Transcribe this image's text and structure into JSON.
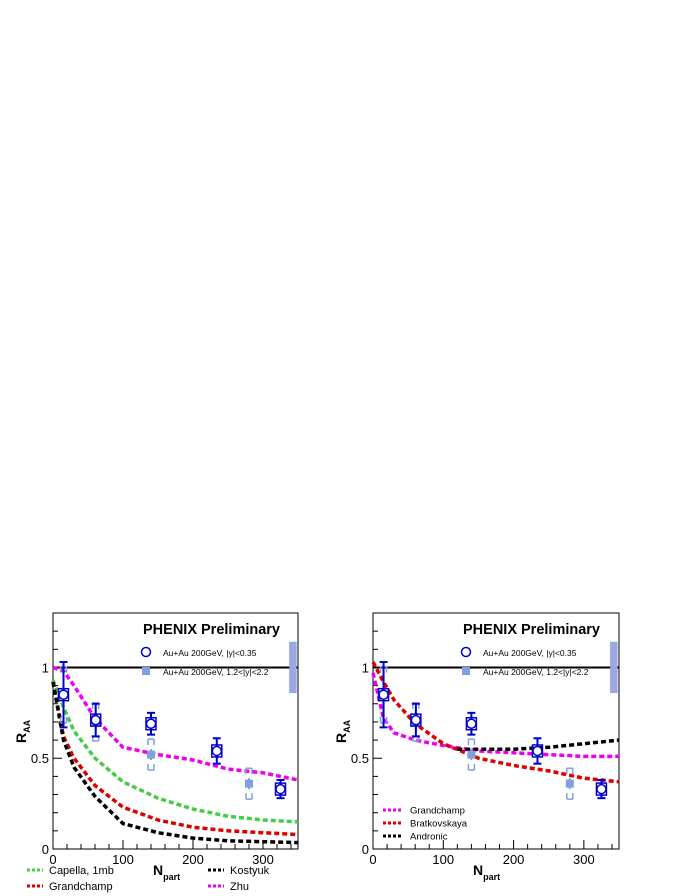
{
  "chart_data": [
    {
      "type": "line",
      "title": "PHENIX Preliminary",
      "xlabel": "N",
      "xlabel_sub": "part",
      "ylabel": "R",
      "ylabel_sub": "AA",
      "xlim": [
        0,
        350
      ],
      "ylim": [
        0,
        1.3
      ],
      "xticks": [
        0,
        100,
        200,
        300
      ],
      "yticks": [
        0,
        0.5,
        1
      ],
      "xtick_labels": [
        "0",
        "100",
        "200",
        "300"
      ],
      "ytick_labels": [
        "0",
        "0.5",
        "1"
      ],
      "reference_line": 1,
      "data_series": [
        {
          "name": "Au+Au 200GeV, |y|<0.35",
          "marker": "open-circle",
          "color": "#0000cc",
          "points": [
            {
              "x": 15,
              "y": 0.85,
              "err": 0.18
            },
            {
              "x": 61,
              "y": 0.71,
              "err": 0.09
            },
            {
              "x": 140,
              "y": 0.69,
              "err": 0.06
            },
            {
              "x": 234,
              "y": 0.54,
              "err": 0.07
            },
            {
              "x": 325,
              "y": 0.33,
              "err": 0.05
            }
          ]
        },
        {
          "name": "Au+Au 200GeV, 1.2<|y|<2.2",
          "marker": "filled-square",
          "color": "#7f9fdf",
          "points": [
            {
              "x": 15,
              "y": 0.85,
              "err": 0.1
            },
            {
              "x": 61,
              "y": 0.7,
              "err": 0.05
            },
            {
              "x": 140,
              "y": 0.52,
              "err": 0.03
            },
            {
              "x": 280,
              "y": 0.36,
              "err": 0.03
            }
          ]
        }
      ],
      "model_curves": [
        {
          "name": "Capella, 1mb",
          "color": "#44cc44",
          "x": [
            0,
            15,
            30,
            60,
            100,
            150,
            200,
            250,
            300,
            350
          ],
          "y": [
            0.93,
            0.78,
            0.65,
            0.5,
            0.37,
            0.28,
            0.22,
            0.18,
            0.16,
            0.15
          ]
        },
        {
          "name": "Grandchamp",
          "color": "#dd0000",
          "x": [
            0,
            15,
            30,
            60,
            100,
            150,
            200,
            250,
            300,
            350
          ],
          "y": [
            0.92,
            0.62,
            0.5,
            0.35,
            0.23,
            0.16,
            0.12,
            0.1,
            0.09,
            0.08
          ]
        },
        {
          "name": "Kostyuk",
          "color": "#000000",
          "x": [
            0,
            15,
            30,
            60,
            100,
            150,
            200,
            250,
            300,
            350
          ],
          "y": [
            0.92,
            0.6,
            0.45,
            0.29,
            0.14,
            0.09,
            0.06,
            0.045,
            0.04,
            0.035
          ]
        },
        {
          "name": "Zhu",
          "color": "#ee00ee",
          "x": [
            0,
            15,
            30,
            60,
            100,
            150,
            200,
            250,
            300,
            350
          ],
          "y": [
            1.0,
            0.98,
            0.9,
            0.72,
            0.56,
            0.52,
            0.49,
            0.44,
            0.42,
            0.38
          ]
        }
      ],
      "sys_band": {
        "x": 342,
        "ylow": 0.86,
        "yhigh": 1.14
      },
      "model_legend": [
        {
          "label": "Capella, 1mb",
          "color": "#44cc44"
        },
        {
          "label": "Grandchamp",
          "color": "#dd0000"
        },
        {
          "label": "Kostyuk",
          "color": "#000000"
        },
        {
          "label": "Zhu",
          "color": "#ee00ee"
        }
      ]
    },
    {
      "type": "line",
      "title": "PHENIX Preliminary",
      "xlabel": "N",
      "xlabel_sub": "part",
      "ylabel": "R",
      "ylabel_sub": "AA",
      "xlim": [
        0,
        350
      ],
      "ylim": [
        0,
        1.3
      ],
      "xticks": [
        0,
        100,
        200,
        300
      ],
      "yticks": [
        0,
        0.5,
        1
      ],
      "xtick_labels": [
        "0",
        "100",
        "200",
        "300"
      ],
      "ytick_labels": [
        "0",
        "0.5",
        "1"
      ],
      "reference_line": 1,
      "data_series": [
        {
          "name": "Au+Au 200GeV, |y|<0.35",
          "marker": "open-circle",
          "color": "#0000cc",
          "points": [
            {
              "x": 15,
              "y": 0.85,
              "err": 0.18
            },
            {
              "x": 61,
              "y": 0.71,
              "err": 0.09
            },
            {
              "x": 140,
              "y": 0.69,
              "err": 0.06
            },
            {
              "x": 234,
              "y": 0.54,
              "err": 0.07
            },
            {
              "x": 325,
              "y": 0.33,
              "err": 0.05
            }
          ]
        },
        {
          "name": "Au+Au 200GeV, 1.2<|y|<2.2",
          "marker": "filled-square",
          "color": "#7f9fdf",
          "points": [
            {
              "x": 15,
              "y": 0.85,
              "err": 0.1
            },
            {
              "x": 61,
              "y": 0.7,
              "err": 0.05
            },
            {
              "x": 140,
              "y": 0.52,
              "err": 0.03
            },
            {
              "x": 280,
              "y": 0.36,
              "err": 0.03
            }
          ]
        }
      ],
      "model_curves": [
        {
          "name": "Grandchamp",
          "color": "#ee00ee",
          "x": [
            0,
            15,
            30,
            60,
            100,
            150,
            200,
            250,
            300,
            350
          ],
          "y": [
            0.97,
            0.72,
            0.64,
            0.6,
            0.57,
            0.54,
            0.53,
            0.52,
            0.51,
            0.51
          ]
        },
        {
          "name": "Bratkovskaya",
          "color": "#dd0000",
          "x": [
            0,
            15,
            30,
            60,
            100,
            150,
            200,
            250,
            300,
            350
          ],
          "y": [
            1.03,
            0.92,
            0.82,
            0.69,
            0.58,
            0.5,
            0.46,
            0.43,
            0.39,
            0.37
          ]
        },
        {
          "name": "Andronic",
          "color": "#000000",
          "x": [
            120,
            150,
            200,
            250,
            300,
            350
          ],
          "y": [
            0.55,
            0.55,
            0.55,
            0.56,
            0.58,
            0.6
          ]
        }
      ],
      "sys_band": {
        "x": 342,
        "ylow": 0.86,
        "yhigh": 1.14
      },
      "model_legend": [
        {
          "label": "Grandchamp",
          "color": "#ee00ee"
        },
        {
          "label": "Bratkovskaya",
          "color": "#dd0000"
        },
        {
          "label": "Andronic",
          "color": "#000000"
        }
      ]
    }
  ]
}
